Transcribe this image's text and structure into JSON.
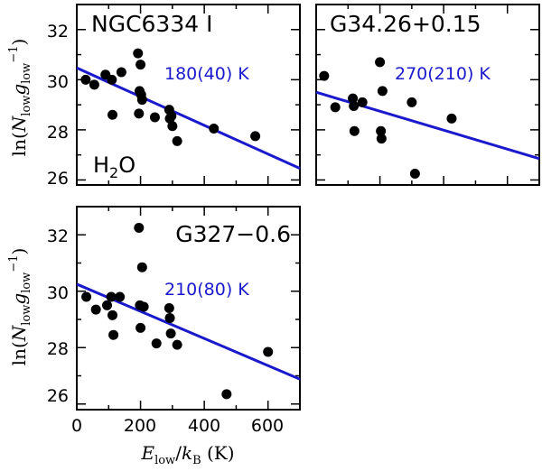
{
  "colors": {
    "fit_line": "#1a1acc",
    "points": "#000000",
    "temperature_text": "#1a1acc",
    "frame": "#000000"
  },
  "axes": {
    "xlabel": {
      "e": "E",
      "low1": "low",
      "slash": "/",
      "k": "k",
      "b": "B",
      "unit": " (K)"
    },
    "ylabel": {
      "pre": "ln(",
      "n": "N",
      "low1": "low",
      "g": "g",
      "low2": "low",
      "sup": "−1",
      "post": ")"
    },
    "x_ticks": [
      "0",
      "200",
      "400",
      "600"
    ],
    "y_ticks": [
      "26",
      "28",
      "30",
      "32"
    ],
    "xlim": [
      0,
      700
    ],
    "ylim": [
      25.8,
      33.0
    ]
  },
  "chart_data": [
    {
      "type": "scatter",
      "title": "NGC6334  I",
      "annotation": "180(40)  K",
      "molecule": {
        "main": "H",
        "sub": "2",
        "tail": "O"
      },
      "points": [
        {
          "x": 28,
          "y": 30.0
        },
        {
          "x": 55,
          "y": 29.8
        },
        {
          "x": 90,
          "y": 30.2
        },
        {
          "x": 110,
          "y": 30.0
        },
        {
          "x": 112,
          "y": 28.6
        },
        {
          "x": 140,
          "y": 30.3
        },
        {
          "x": 192,
          "y": 31.05
        },
        {
          "x": 195,
          "y": 28.65
        },
        {
          "x": 197,
          "y": 29.55
        },
        {
          "x": 200,
          "y": 30.6
        },
        {
          "x": 202,
          "y": 29.4
        },
        {
          "x": 205,
          "y": 29.2
        },
        {
          "x": 245,
          "y": 28.5
        },
        {
          "x": 290,
          "y": 28.8
        },
        {
          "x": 292,
          "y": 28.45
        },
        {
          "x": 297,
          "y": 28.55
        },
        {
          "x": 300,
          "y": 28.15
        },
        {
          "x": 315,
          "y": 27.55
        },
        {
          "x": 430,
          "y": 28.05
        },
        {
          "x": 560,
          "y": 27.75
        }
      ],
      "fit": {
        "x": [
          0,
          700
        ],
        "y": [
          30.47,
          26.46
        ]
      }
    },
    {
      "type": "scatter",
      "title": "G34.26+0.15",
      "annotation": "270(210)  K",
      "points": [
        {
          "x": 25,
          "y": 30.15
        },
        {
          "x": 60,
          "y": 28.9
        },
        {
          "x": 115,
          "y": 29.25
        },
        {
          "x": 118,
          "y": 28.95
        },
        {
          "x": 120,
          "y": 27.95
        },
        {
          "x": 145,
          "y": 29.1
        },
        {
          "x": 200,
          "y": 30.7
        },
        {
          "x": 203,
          "y": 27.95
        },
        {
          "x": 205,
          "y": 27.65
        },
        {
          "x": 208,
          "y": 29.55
        },
        {
          "x": 300,
          "y": 29.1
        },
        {
          "x": 310,
          "y": 26.25
        },
        {
          "x": 425,
          "y": 28.45
        }
      ],
      "fit": {
        "x": [
          0,
          700
        ],
        "y": [
          29.5,
          26.85
        ]
      }
    },
    {
      "type": "scatter",
      "title": "G327−0.6",
      "annotation": "210(80)  K",
      "points": [
        {
          "x": 30,
          "y": 29.8
        },
        {
          "x": 60,
          "y": 29.35
        },
        {
          "x": 95,
          "y": 29.5
        },
        {
          "x": 108,
          "y": 29.8
        },
        {
          "x": 112,
          "y": 29.15
        },
        {
          "x": 115,
          "y": 28.45
        },
        {
          "x": 135,
          "y": 29.8
        },
        {
          "x": 195,
          "y": 32.25
        },
        {
          "x": 198,
          "y": 29.5
        },
        {
          "x": 200,
          "y": 28.7
        },
        {
          "x": 205,
          "y": 30.85
        },
        {
          "x": 210,
          "y": 29.45
        },
        {
          "x": 250,
          "y": 28.15
        },
        {
          "x": 290,
          "y": 29.4
        },
        {
          "x": 292,
          "y": 29.05
        },
        {
          "x": 295,
          "y": 28.5
        },
        {
          "x": 315,
          "y": 28.1
        },
        {
          "x": 470,
          "y": 26.35
        },
        {
          "x": 600,
          "y": 27.85
        }
      ],
      "fit": {
        "x": [
          0,
          700
        ],
        "y": [
          30.25,
          26.88
        ]
      }
    }
  ]
}
